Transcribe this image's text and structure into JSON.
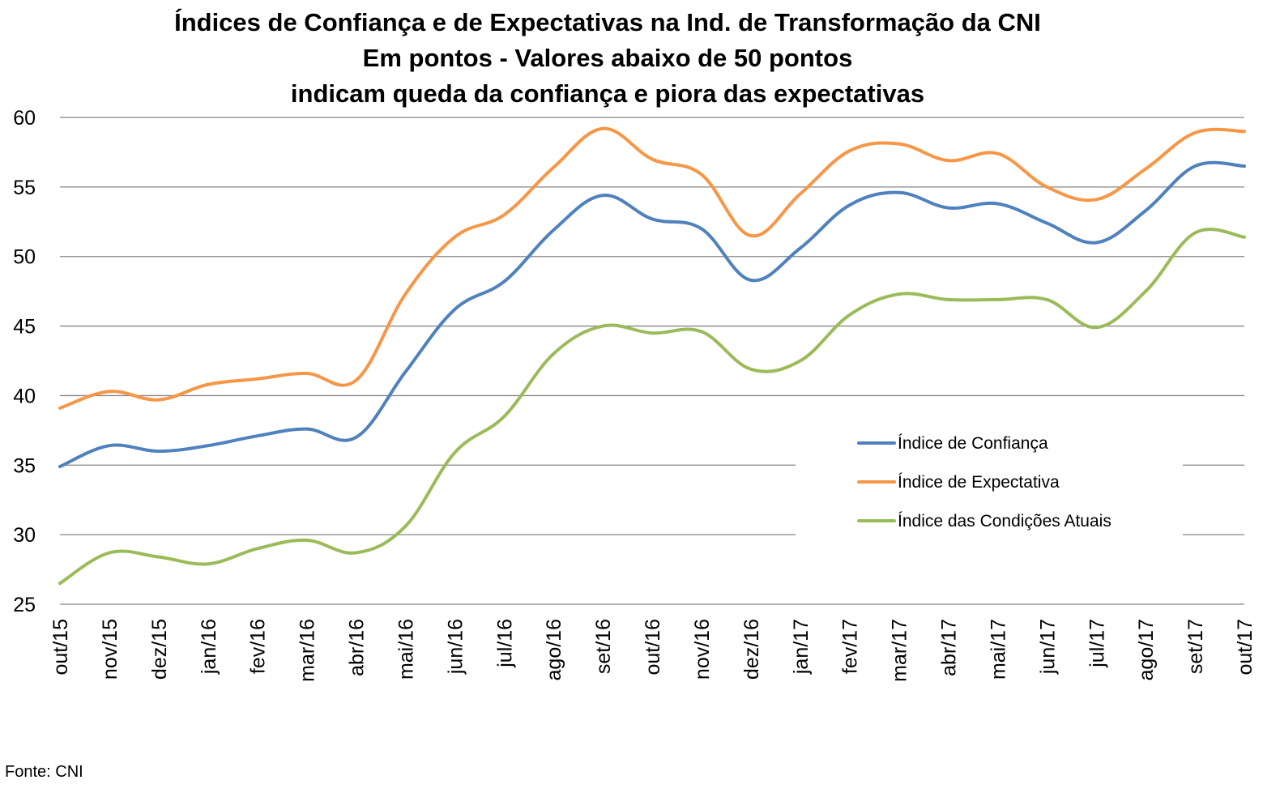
{
  "chart_data": {
    "type": "line",
    "title_lines": [
      "Índices de Confiança e de Expectativas na Ind. de Transformação da CNI",
      "Em pontos - Valores abaixo de 50 pontos",
      "indicam queda da confiança e piora das expectativas"
    ],
    "xlabel": "",
    "ylabel": "",
    "ylim": [
      25,
      60
    ],
    "yticks": [
      "25",
      "30",
      "35",
      "40",
      "45",
      "50",
      "55",
      "60"
    ],
    "grid": true,
    "legend_position": "right",
    "categories": [
      "out/15",
      "nov/15",
      "dez/15",
      "jan/16",
      "fev/16",
      "mar/16",
      "abr/16",
      "mai/16",
      "jun/16",
      "jul/16",
      "ago/16",
      "set/16",
      "out/16",
      "nov/16",
      "dez/16",
      "jan/17",
      "fev/17",
      "mar/17",
      "abr/17",
      "mai/17",
      "jun/17",
      "jul/17",
      "ago/17",
      "set/17",
      "out/17"
    ],
    "series": [
      {
        "name": "Índice de Confiança",
        "color": "#4f81bd",
        "values": [
          34.9,
          36.4,
          36.0,
          36.4,
          37.1,
          37.6,
          37.0,
          41.7,
          46.2,
          48.2,
          51.9,
          54.4,
          52.7,
          52.0,
          48.3,
          50.6,
          53.7,
          54.6,
          53.5,
          53.8,
          52.4,
          51.0,
          53.3,
          56.5,
          56.5
        ]
      },
      {
        "name": "Índice de Expectativa",
        "color": "#f79646",
        "values": [
          39.1,
          40.3,
          39.7,
          40.8,
          41.2,
          41.6,
          41.1,
          47.3,
          51.4,
          53.0,
          56.4,
          59.2,
          57.0,
          55.9,
          51.5,
          54.5,
          57.6,
          58.1,
          56.9,
          57.4,
          55.0,
          54.1,
          56.3,
          58.9,
          59.0
        ]
      },
      {
        "name": "Índice das Condições Atuais",
        "color": "#9bbb59",
        "values": [
          26.5,
          28.7,
          28.4,
          27.9,
          29.0,
          29.6,
          28.7,
          30.6,
          35.9,
          38.5,
          43.0,
          45.0,
          44.5,
          44.6,
          41.9,
          42.5,
          45.8,
          47.3,
          46.9,
          46.9,
          46.9,
          44.9,
          47.5,
          51.7,
          51.4
        ]
      }
    ],
    "source": "Fonte: CNI"
  }
}
